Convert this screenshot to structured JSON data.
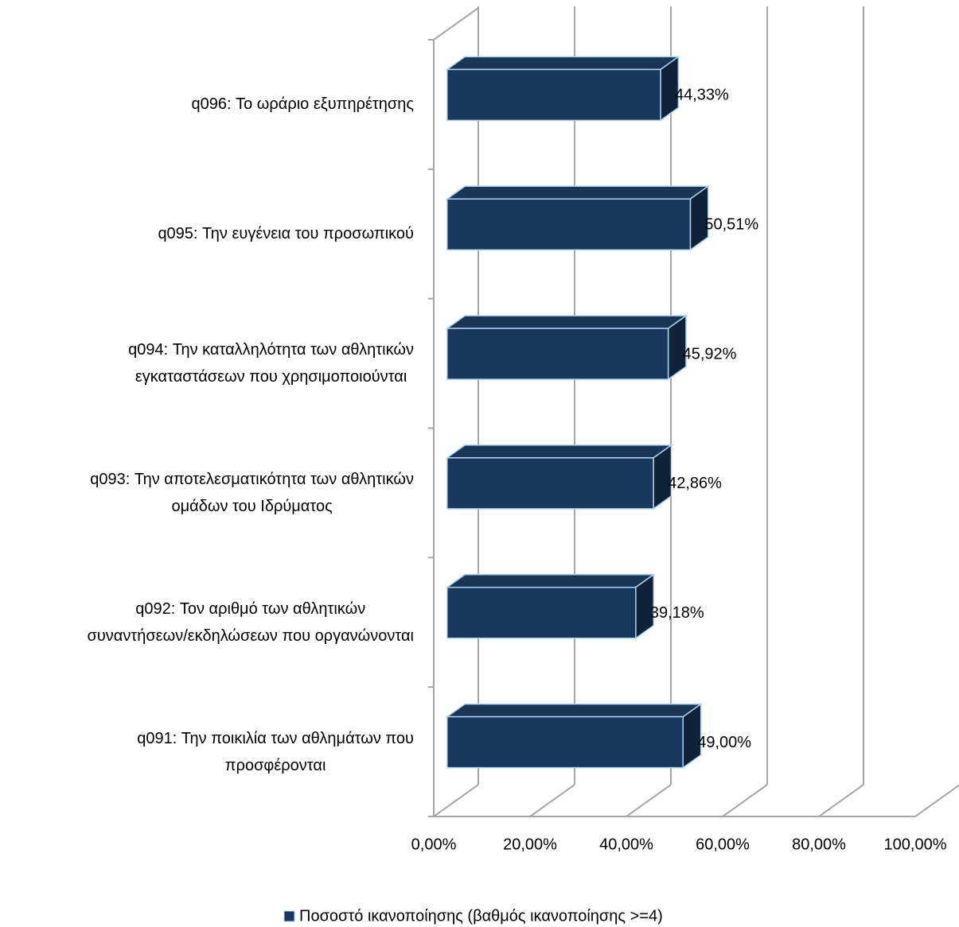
{
  "chart_data": {
    "type": "bar3d_horizontal",
    "categories": [
      "q091: Την ποικιλία των αθλημάτων που\nπροσφέρονται",
      "q092: Τον αριθμό των αθλητικών\nσυναντήσεων/εκδηλώσεων που οργανώνονται",
      "q093: Την αποτελεσματικότητα των αθλητικών\nομάδων του Ιδρύματος",
      "q094: Την καταλληλότητα των αθλητικών\nεγκαταστάσεων που χρησιμοποιούνται",
      "q095: Την ευγένεια του προσωπικού",
      "q096: Το ωράριο εξυπηρέτησης"
    ],
    "series": [
      {
        "name": "Ποσοστό ικανοποίησης (βαθμός ικανοποίησης >=4)",
        "color": "#17375e",
        "values": [
          49.0,
          39.18,
          42.86,
          45.92,
          50.51,
          44.33
        ],
        "value_labels": [
          "49,00%",
          "39,18%",
          "42,86%",
          "45,92%",
          "50,51%",
          "44,33%"
        ]
      }
    ],
    "xlim": [
      0,
      100
    ],
    "xticks": [
      {
        "value": 0,
        "label": "0,00%"
      },
      {
        "value": 20,
        "label": "20,00%"
      },
      {
        "value": 40,
        "label": "40,00%"
      },
      {
        "value": 60,
        "label": "60,00%"
      },
      {
        "value": 80,
        "label": "80,00%"
      },
      {
        "value": 100,
        "label": "100,00%"
      }
    ],
    "grid": true,
    "legend": "bottom"
  }
}
